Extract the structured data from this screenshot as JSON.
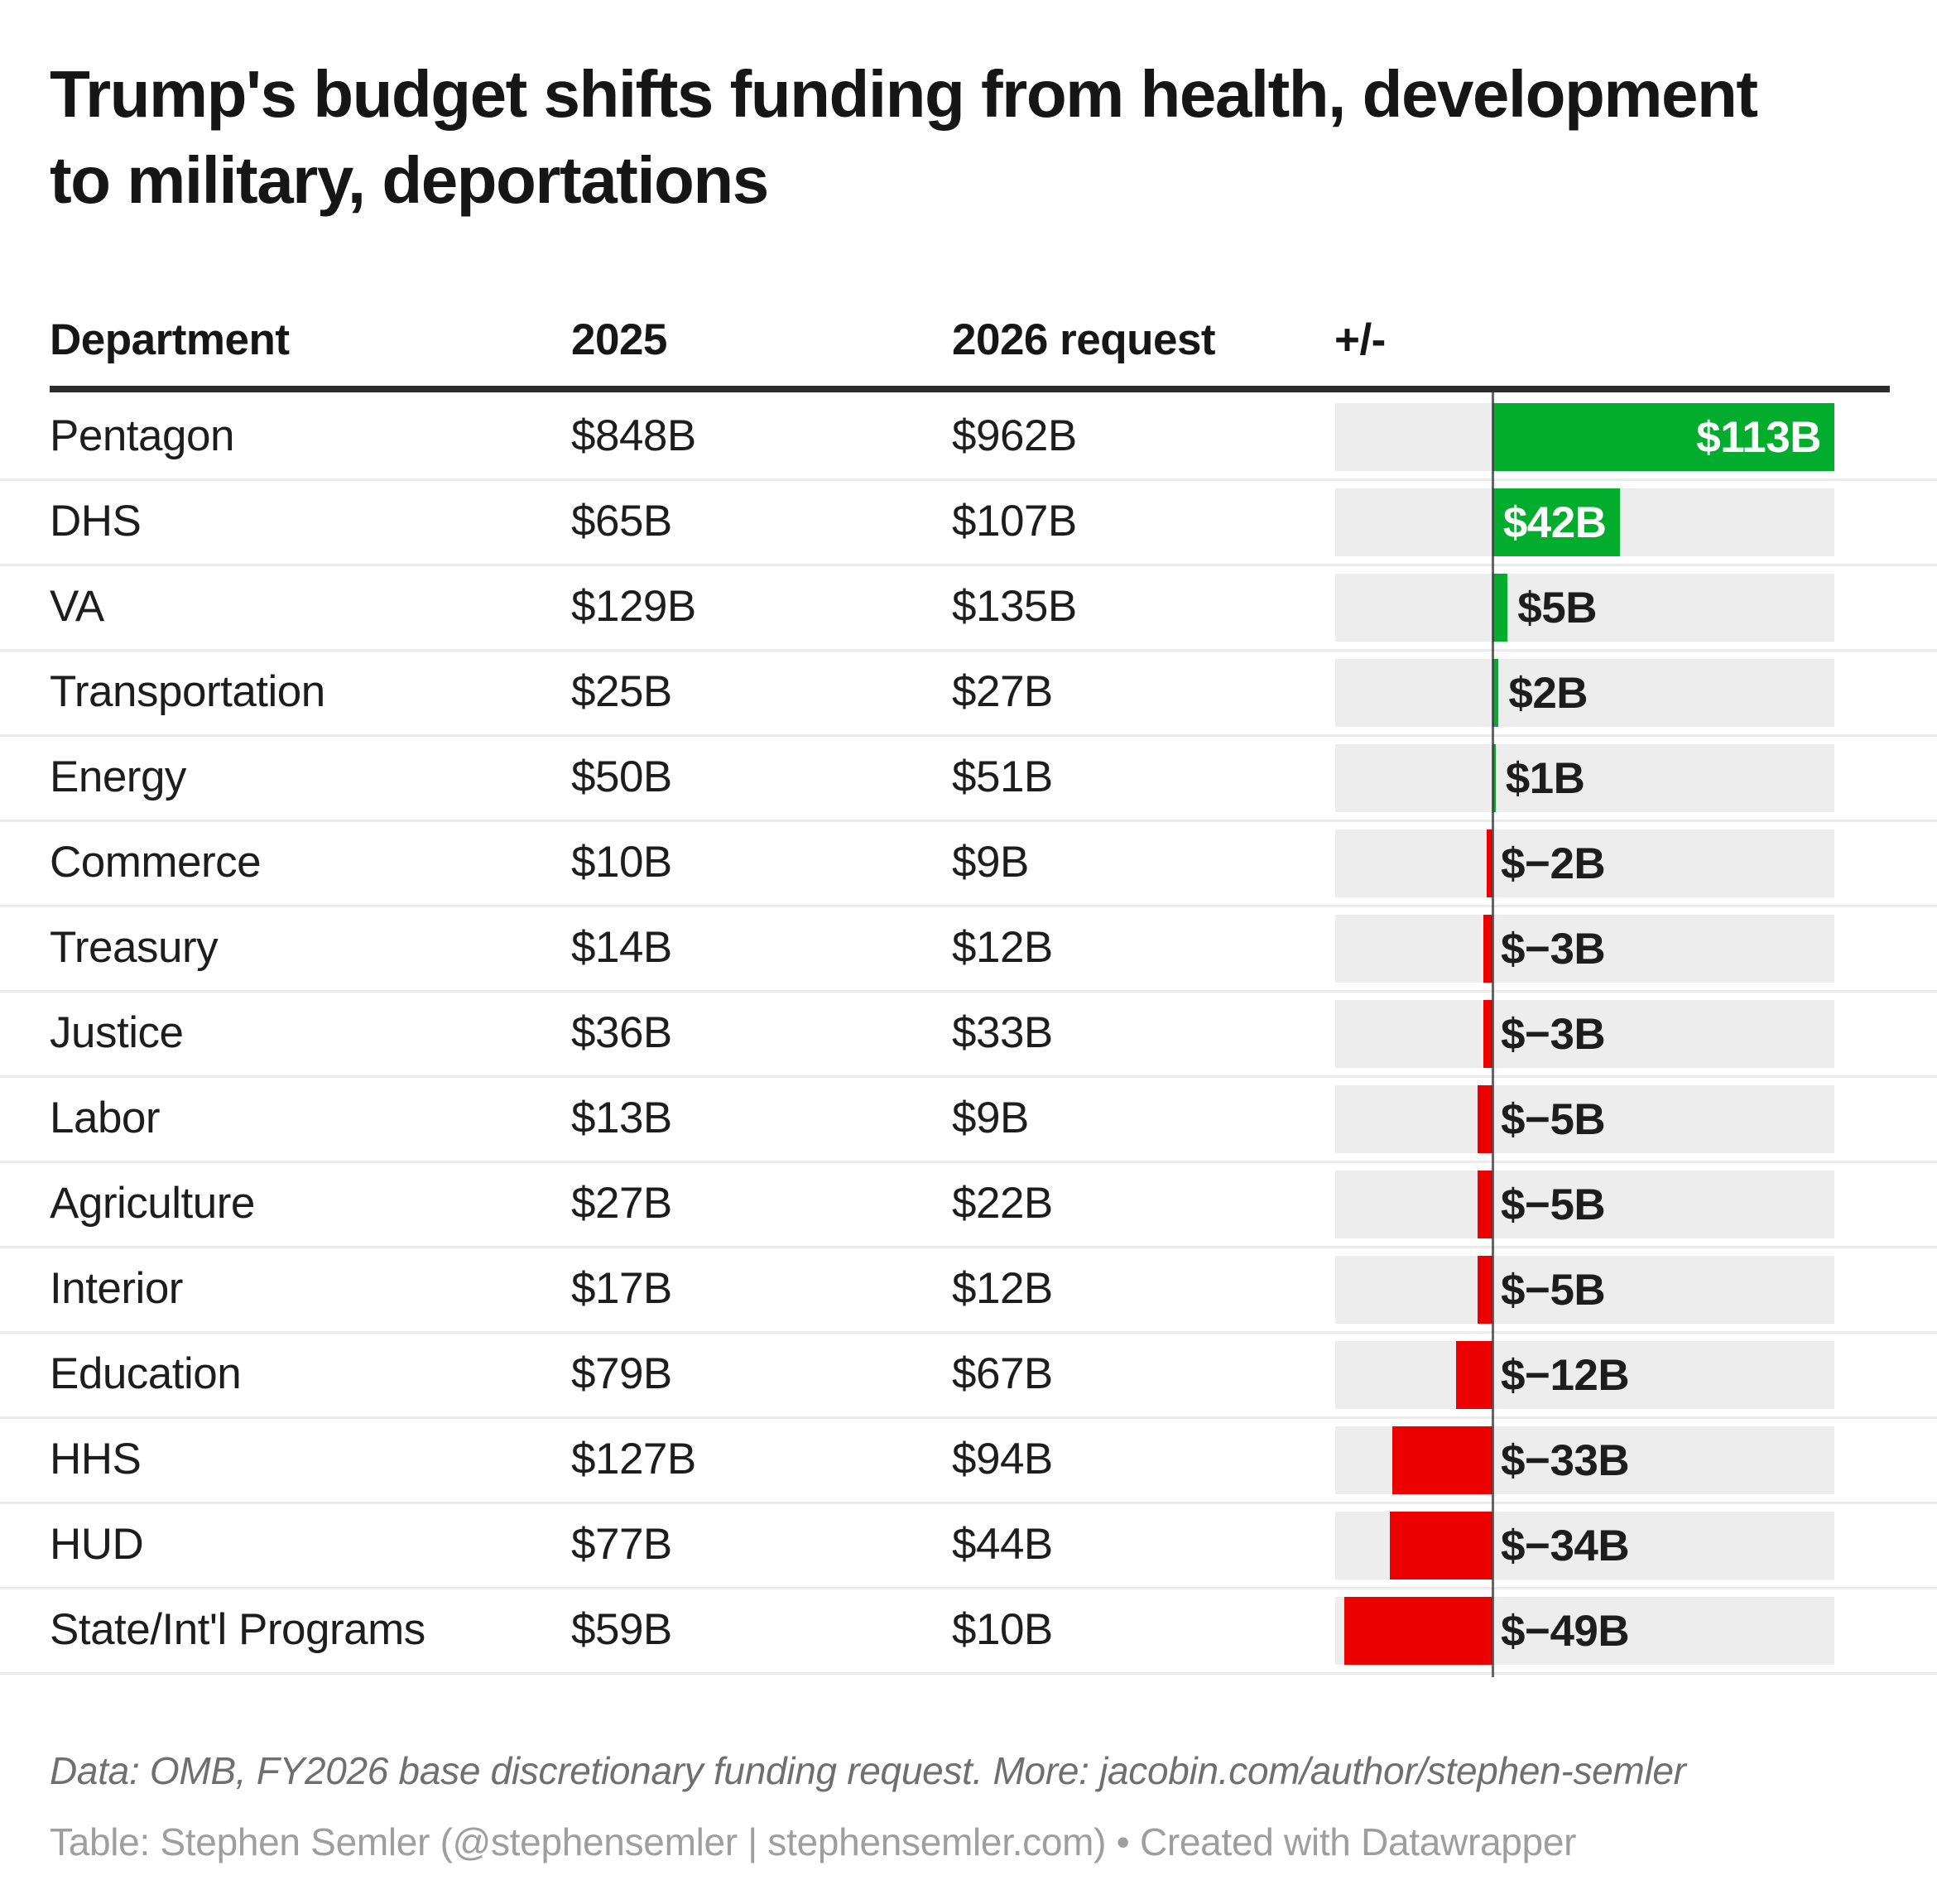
{
  "title": {
    "line1": "Trump's budget shifts funding from health, development",
    "line2": "to military, deportations",
    "full": "Trump's budget shifts funding from health, development to military, deportations"
  },
  "header": {
    "columns": [
      "Department",
      "2025",
      "2026 request",
      "+/-"
    ]
  },
  "footer": {
    "data_line": "Data: OMB, FY2026 base discretionary funding request. More: jacobin.com/author/stephen-semler",
    "credit_line": "Table: Stephen Semler (@stephensemler | stephensemler.com) • Created with Datawrapper"
  },
  "colors": {
    "positive_bar": "#02ac2c",
    "negative_bar": "#ec0000",
    "track": "#ededed",
    "axis_line": "#3a3a3a",
    "inside_label": "#ffffff",
    "outside_label": "#1d1d1d",
    "header_rule": "#2d2d2d",
    "separator": "#ebebeb"
  },
  "chart_data": {
    "type": "table",
    "title": "Trump's budget shifts funding from health, development to military, deportations",
    "columns": [
      "Department",
      "2025",
      "2026 request",
      "+/-"
    ],
    "bar_axis": {
      "min": -52,
      "max": 113
    },
    "legend_position": "none",
    "rows": [
      {
        "department": "Pentagon",
        "y2025_label": "$848B",
        "y2026_label": "$962B",
        "change": 113,
        "change_label": "$113B"
      },
      {
        "department": "DHS",
        "y2025_label": "$65B",
        "y2026_label": "$107B",
        "change": 42,
        "change_label": "$42B"
      },
      {
        "department": "VA",
        "y2025_label": "$129B",
        "y2026_label": "$135B",
        "change": 5,
        "change_label": "$5B"
      },
      {
        "department": "Transportation",
        "y2025_label": "$25B",
        "y2026_label": "$27B",
        "change": 2,
        "change_label": "$2B"
      },
      {
        "department": "Energy",
        "y2025_label": "$50B",
        "y2026_label": "$51B",
        "change": 1,
        "change_label": "$1B"
      },
      {
        "department": "Commerce",
        "y2025_label": "$10B",
        "y2026_label": "$9B",
        "change": -2,
        "change_label": "$−2B"
      },
      {
        "department": "Treasury",
        "y2025_label": "$14B",
        "y2026_label": "$12B",
        "change": -3,
        "change_label": "$−3B"
      },
      {
        "department": "Justice",
        "y2025_label": "$36B",
        "y2026_label": "$33B",
        "change": -3,
        "change_label": "$−3B"
      },
      {
        "department": "Labor",
        "y2025_label": "$13B",
        "y2026_label": "$9B",
        "change": -5,
        "change_label": "$−5B"
      },
      {
        "department": "Agriculture",
        "y2025_label": "$27B",
        "y2026_label": "$22B",
        "change": -5,
        "change_label": "$−5B"
      },
      {
        "department": "Interior",
        "y2025_label": "$17B",
        "y2026_label": "$12B",
        "change": -5,
        "change_label": "$−5B"
      },
      {
        "department": "Education",
        "y2025_label": "$79B",
        "y2026_label": "$67B",
        "change": -12,
        "change_label": "$−12B"
      },
      {
        "department": "HHS",
        "y2025_label": "$127B",
        "y2026_label": "$94B",
        "change": -33,
        "change_label": "$−33B"
      },
      {
        "department": "HUD",
        "y2025_label": "$77B",
        "y2026_label": "$44B",
        "change": -34,
        "change_label": "$−34B"
      },
      {
        "department": "State/Int'l Programs",
        "y2025_label": "$59B",
        "y2026_label": "$10B",
        "change": -49,
        "change_label": "$−49B"
      }
    ]
  }
}
